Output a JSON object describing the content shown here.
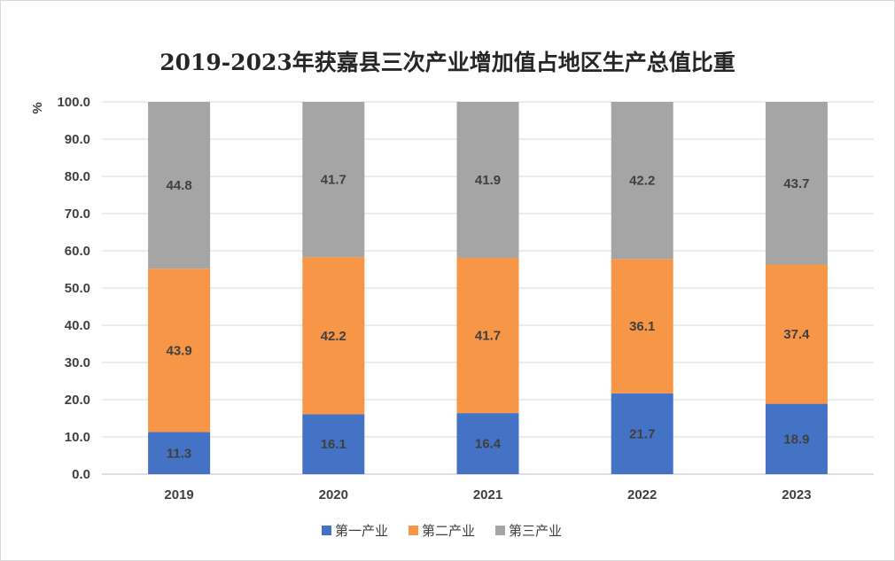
{
  "chart_data": {
    "type": "bar",
    "stacked": true,
    "title": "2019-2023年获嘉县三次产业增加值占地区生产总值比重",
    "ylabel": "%",
    "xlabel": "",
    "ylim": [
      0,
      100
    ],
    "yticks": [
      "0.0",
      "10.0",
      "20.0",
      "30.0",
      "40.0",
      "50.0",
      "60.0",
      "70.0",
      "80.0",
      "90.0",
      "100.0"
    ],
    "grid": true,
    "legend_position": "bottom",
    "categories": [
      "2019",
      "2020",
      "2021",
      "2022",
      "2023"
    ],
    "series": [
      {
        "name": "第一产业",
        "color": "#4472c4",
        "values": [
          11.3,
          16.1,
          16.4,
          21.7,
          18.9
        ]
      },
      {
        "name": "第二产业",
        "color": "#f79646",
        "values": [
          43.9,
          42.2,
          41.7,
          36.1,
          37.4
        ]
      },
      {
        "name": "第三产业",
        "color": "#a5a5a5",
        "values": [
          44.8,
          41.7,
          41.9,
          42.2,
          43.7
        ]
      }
    ]
  }
}
